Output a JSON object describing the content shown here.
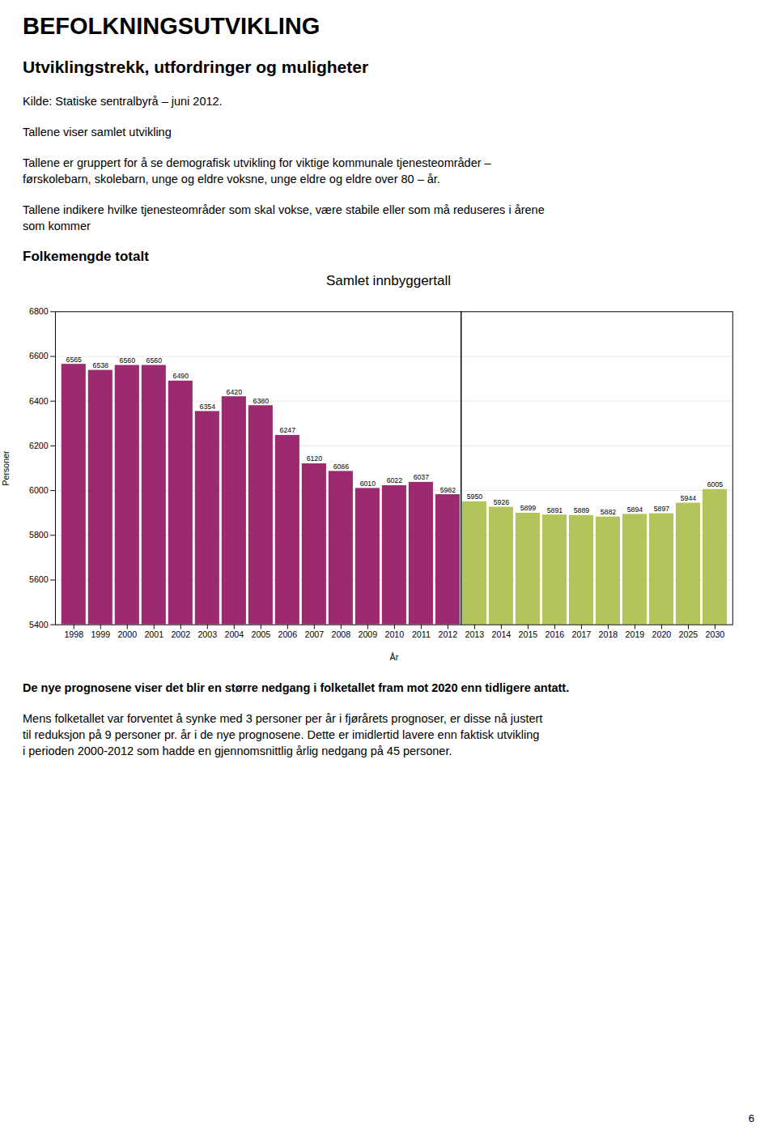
{
  "title": "BEFOLKNINGSUTVIKLING",
  "subtitle": "Utviklingstrekk, utfordringer og muligheter",
  "text_above": [
    [
      "Kilde: Statiske sentralbyrå – juni 2012."
    ],
    [
      "Tallene viser samlet utvikling"
    ],
    [
      "Tallene er gruppert for å se demografisk utvikling for viktige kommunale tjenesteområder –",
      "førskolebarn, skolebarn, unge og eldre voksne, unge eldre og eldre over 80 – år."
    ],
    [
      "Tallene indikere hvilke tjenesteområder som skal vokse, være stabile eller som må reduseres i årene",
      "som kommer"
    ]
  ],
  "section_title": "Folkemengde totalt",
  "text_below": [
    [
      "De nye prognosene viser det blir en større  nedgang i folketallet fram mot 2020 enn tidligere antatt."
    ],
    [
      "Mens folketallet var forventet å synke med 3 personer per år i fjørårets prognoser, er disse nå justert",
      "til reduksjon på 9 personer pr. år i de nye prognosene. Dette er imidlertid lavere enn faktisk utvikling",
      "i perioden 2000-2012 som hadde en gjennomsnittlig årlig nedgang på 45 personer."
    ]
  ],
  "page_number": "6",
  "chart_data": {
    "type": "bar",
    "title": "Samlet innbyggertall",
    "xlabel": "År",
    "ylabel": "Personer",
    "categories": [
      "1998",
      "1999",
      "2000",
      "2001",
      "2002",
      "2003",
      "2004",
      "2005",
      "2006",
      "2007",
      "2008",
      "2009",
      "2010",
      "2011",
      "2012",
      "2013",
      "2014",
      "2015",
      "2016",
      "2017",
      "2018",
      "2019",
      "2020",
      "2025",
      "2030"
    ],
    "values": [
      6565,
      6538,
      6560,
      6560,
      6490,
      6354,
      6420,
      6380,
      6247,
      6120,
      6086,
      6010,
      6022,
      6037,
      5982,
      5950,
      5926,
      5899,
      5891,
      5889,
      5882,
      5894,
      5897,
      5944,
      6005
    ],
    "colors": [
      "#9b2b6e",
      "#9b2b6e",
      "#9b2b6e",
      "#9b2b6e",
      "#9b2b6e",
      "#9b2b6e",
      "#9b2b6e",
      "#9b2b6e",
      "#9b2b6e",
      "#9b2b6e",
      "#9b2b6e",
      "#9b2b6e",
      "#9b2b6e",
      "#9b2b6e",
      "#9b2b6e",
      "#b5c45a",
      "#b5c45a",
      "#b5c45a",
      "#b5c45a",
      "#b5c45a",
      "#b5c45a",
      "#b5c45a",
      "#b5c45a",
      "#b5c45a",
      "#b5c45a"
    ],
    "ylim": [
      5400,
      6800
    ],
    "yticks": [
      5400,
      5600,
      5800,
      6000,
      6200,
      6400,
      6600,
      6800
    ],
    "grid": true,
    "data_labels": true
  }
}
